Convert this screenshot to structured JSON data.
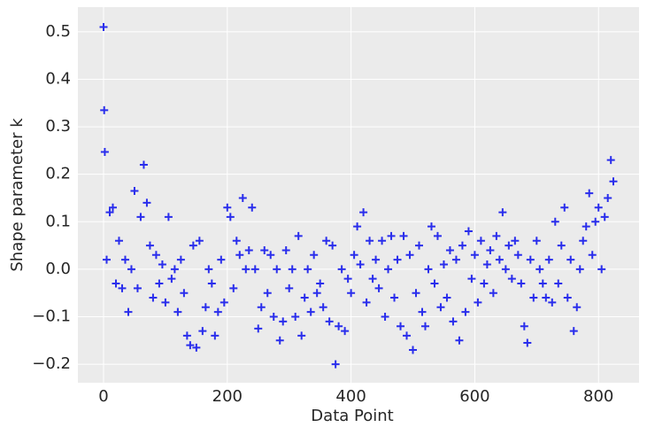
{
  "chart_data": {
    "type": "scatter",
    "xlabel": "Data Point",
    "ylabel": "Shape parameter k",
    "color": "#2a2eec",
    "grid": true,
    "xlim": [
      -41.5,
      865.5
    ],
    "xticks": [
      0,
      200,
      400,
      600,
      800
    ],
    "ylim": [
      -0.239,
      0.552
    ],
    "yticks": [
      {
        "value": -0.2,
        "label": "−0.2"
      },
      {
        "value": -0.1,
        "label": "−0.1"
      },
      {
        "value": 0,
        "label": "0.0"
      },
      0.1,
      0.2,
      0.3,
      0.4,
      0.5
    ],
    "x": [
      0,
      1,
      2,
      5,
      10,
      15,
      20,
      25,
      30,
      35,
      40,
      45,
      50,
      55,
      60,
      65,
      70,
      75,
      80,
      85,
      90,
      95,
      100,
      105,
      110,
      115,
      120,
      125,
      130,
      135,
      140,
      145,
      150,
      155,
      160,
      165,
      170,
      175,
      180,
      185,
      190,
      195,
      200,
      205,
      210,
      215,
      220,
      225,
      230,
      235,
      240,
      245,
      250,
      255,
      260,
      265,
      270,
      275,
      280,
      285,
      290,
      295,
      300,
      305,
      310,
      315,
      320,
      325,
      330,
      335,
      340,
      345,
      350,
      355,
      360,
      365,
      370,
      375,
      380,
      385,
      390,
      395,
      400,
      405,
      410,
      415,
      420,
      425,
      430,
      435,
      440,
      445,
      450,
      455,
      460,
      465,
      470,
      475,
      480,
      485,
      490,
      495,
      500,
      505,
      510,
      515,
      520,
      525,
      530,
      535,
      540,
      545,
      550,
      555,
      560,
      565,
      570,
      575,
      580,
      585,
      590,
      595,
      600,
      605,
      610,
      615,
      620,
      625,
      630,
      635,
      640,
      645,
      650,
      655,
      660,
      665,
      670,
      675,
      680,
      685,
      690,
      695,
      700,
      705,
      710,
      715,
      720,
      725,
      730,
      735,
      740,
      745,
      750,
      755,
      760,
      765,
      770,
      775,
      780,
      785,
      790,
      795,
      800,
      805,
      810,
      815,
      820,
      824
    ],
    "values": [
      0.51,
      0.335,
      0.247,
      0.02,
      0.12,
      0.13,
      -0.03,
      0.06,
      -0.04,
      0.02,
      -0.09,
      0.0,
      0.165,
      -0.04,
      0.11,
      0.22,
      0.14,
      0.05,
      -0.06,
      0.03,
      -0.03,
      0.01,
      -0.07,
      0.11,
      -0.02,
      0.0,
      -0.09,
      0.02,
      -0.05,
      -0.14,
      -0.16,
      0.05,
      -0.165,
      0.06,
      -0.13,
      -0.08,
      0.0,
      -0.03,
      -0.14,
      -0.09,
      0.02,
      -0.07,
      0.13,
      0.11,
      -0.04,
      0.06,
      0.03,
      0.15,
      0.0,
      0.04,
      0.13,
      0.0,
      -0.125,
      -0.08,
      0.04,
      -0.05,
      0.03,
      -0.1,
      0.0,
      -0.15,
      -0.11,
      0.04,
      -0.04,
      0.0,
      -0.1,
      0.07,
      -0.14,
      -0.06,
      0.0,
      -0.09,
      0.03,
      -0.05,
      -0.03,
      -0.08,
      0.06,
      -0.11,
      0.05,
      -0.2,
      -0.12,
      0.0,
      -0.13,
      -0.02,
      -0.05,
      0.03,
      0.09,
      0.01,
      0.12,
      -0.07,
      0.06,
      -0.02,
      0.02,
      -0.04,
      0.06,
      -0.1,
      0.0,
      0.07,
      -0.06,
      0.02,
      -0.12,
      0.07,
      -0.14,
      0.03,
      -0.17,
      -0.05,
      0.05,
      -0.09,
      -0.12,
      0.0,
      0.09,
      -0.03,
      0.07,
      -0.08,
      0.01,
      -0.06,
      0.04,
      -0.11,
      0.02,
      -0.15,
      0.05,
      -0.09,
      0.08,
      -0.02,
      0.03,
      -0.07,
      0.06,
      -0.03,
      0.01,
      0.04,
      -0.05,
      0.07,
      0.02,
      0.12,
      0.0,
      0.05,
      -0.02,
      0.06,
      0.03,
      -0.03,
      -0.12,
      -0.155,
      0.02,
      -0.06,
      0.06,
      0.0,
      -0.03,
      -0.06,
      0.02,
      -0.07,
      0.1,
      -0.03,
      0.05,
      0.13,
      -0.06,
      0.02,
      -0.13,
      -0.08,
      0.0,
      0.06,
      0.09,
      0.16,
      0.03,
      0.1,
      0.13,
      0.0,
      0.11,
      0.15,
      0.23,
      0.185
    ]
  }
}
